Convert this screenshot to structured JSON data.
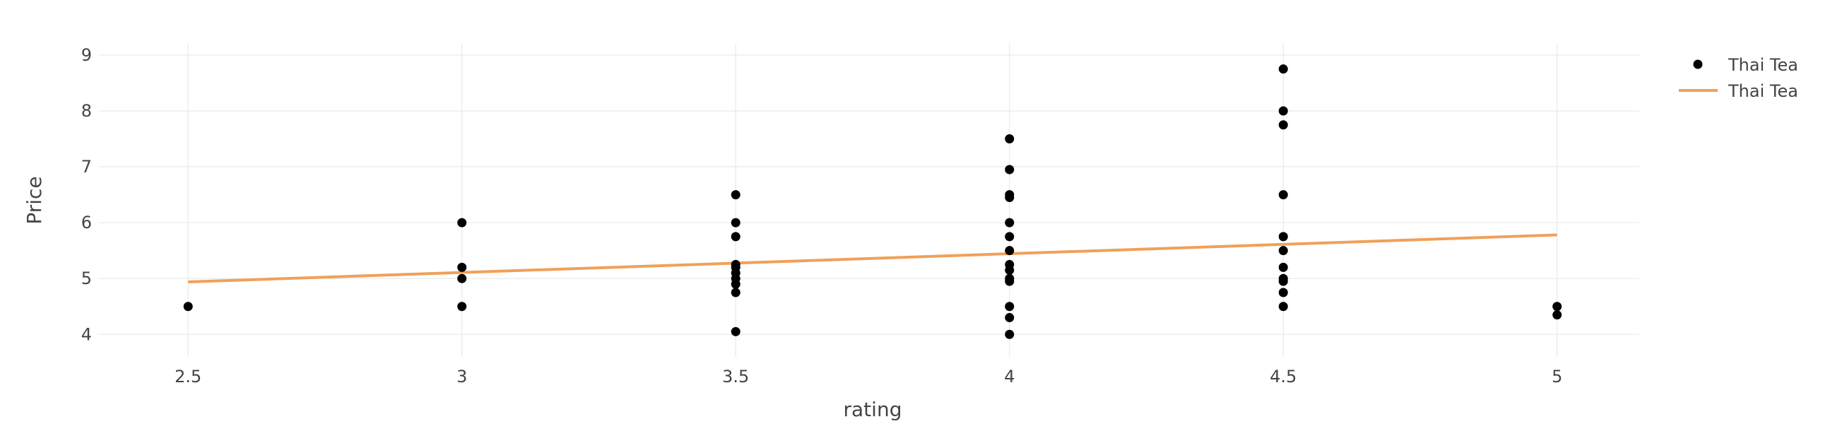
{
  "chart_data": {
    "type": "scatter",
    "title": "",
    "xlabel": "rating",
    "ylabel": "Price",
    "xlim": [
      2.35,
      5.15
    ],
    "ylim": [
      3.7,
      9.1
    ],
    "x_ticks": [
      2.5,
      3,
      3.5,
      4,
      4.5,
      5
    ],
    "x_tick_labels": [
      "2.5",
      "3",
      "3.5",
      "4",
      "4.5",
      "5"
    ],
    "y_ticks": [
      4,
      5,
      6,
      7,
      8,
      9
    ],
    "y_tick_labels": [
      "4",
      "5",
      "6",
      "7",
      "8",
      "9"
    ],
    "grid": true,
    "legend_position": "top-right",
    "colors": {
      "points": "#000000",
      "trend": "#f0a05a"
    },
    "series": [
      {
        "name": "Thai Tea",
        "kind": "markers",
        "points": [
          [
            2.5,
            4.5
          ],
          [
            3,
            6.0
          ],
          [
            3,
            5.2
          ],
          [
            3,
            5.0
          ],
          [
            3,
            4.5
          ],
          [
            3.5,
            6.5
          ],
          [
            3.5,
            6.0
          ],
          [
            3.5,
            5.75
          ],
          [
            3.5,
            5.25
          ],
          [
            3.5,
            5.2
          ],
          [
            3.5,
            5.1
          ],
          [
            3.5,
            5.0
          ],
          [
            3.5,
            4.9
          ],
          [
            3.5,
            4.75
          ],
          [
            3.5,
            4.05
          ],
          [
            4,
            7.5
          ],
          [
            4,
            6.95
          ],
          [
            4,
            6.5
          ],
          [
            4,
            6.45
          ],
          [
            4,
            6.0
          ],
          [
            4,
            5.75
          ],
          [
            4,
            5.5
          ],
          [
            4,
            5.25
          ],
          [
            4,
            5.15
          ],
          [
            4,
            5.0
          ],
          [
            4,
            4.95
          ],
          [
            4,
            4.5
          ],
          [
            4,
            4.3
          ],
          [
            4,
            4.0
          ],
          [
            4.5,
            8.75
          ],
          [
            4.5,
            8.0
          ],
          [
            4.5,
            7.75
          ],
          [
            4.5,
            6.5
          ],
          [
            4.5,
            5.75
          ],
          [
            4.5,
            5.5
          ],
          [
            4.5,
            5.2
          ],
          [
            4.5,
            5.0
          ],
          [
            4.5,
            4.95
          ],
          [
            4.5,
            4.75
          ],
          [
            4.5,
            4.5
          ],
          [
            5,
            4.5
          ],
          [
            5,
            4.35
          ]
        ]
      },
      {
        "name": "Thai Tea",
        "kind": "line",
        "points": [
          [
            2.5,
            4.94
          ],
          [
            5,
            5.78
          ]
        ]
      }
    ]
  }
}
